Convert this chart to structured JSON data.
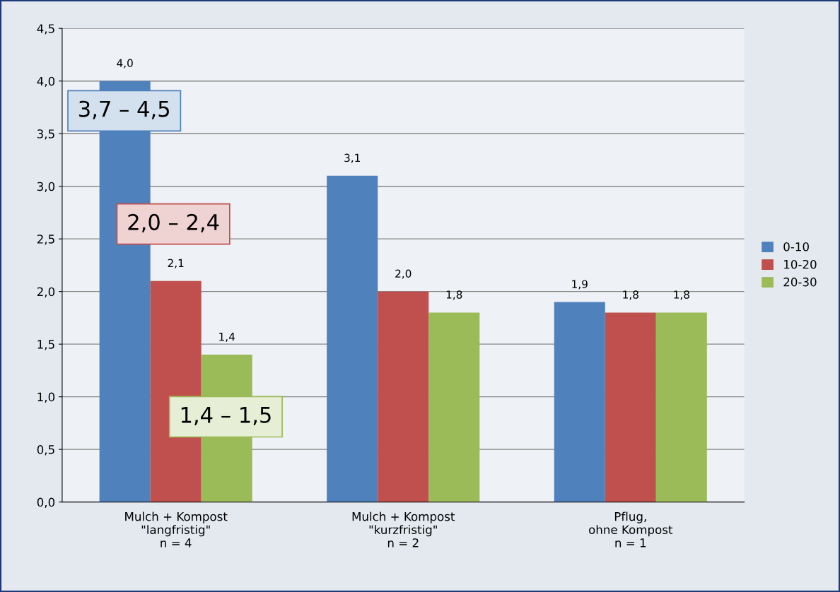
{
  "chart_data": {
    "type": "bar",
    "categories": [
      "Mulch + Kompost\n\"langfristig\"\nn = 4",
      "Mulch + Kompost\n\"kurzfristig\"\nn = 2",
      "Pflug,\nohne Kompost\nn = 1"
    ],
    "series": [
      {
        "name": "0-10",
        "color": "#4f81bd",
        "values": [
          4.0,
          3.1,
          1.9
        ],
        "value_labels": [
          "4,0",
          "3,1",
          "1,9"
        ]
      },
      {
        "name": "10-20",
        "color": "#c0504d",
        "values": [
          2.1,
          2.0,
          1.8
        ],
        "value_labels": [
          "2,1",
          "2,0",
          "1,8"
        ]
      },
      {
        "name": "20-30",
        "color": "#9bbb59",
        "values": [
          1.4,
          1.8,
          1.8
        ],
        "value_labels": [
          "1,4",
          "1,8",
          "1,8"
        ]
      }
    ],
    "ylim": [
      0,
      4.5
    ],
    "yticks": [
      {
        "value": 0,
        "label": "0,0"
      },
      {
        "value": 0.5,
        "label": "0,5"
      },
      {
        "value": 1.0,
        "label": "1,0"
      },
      {
        "value": 1.5,
        "label": "1,5"
      },
      {
        "value": 2.0,
        "label": "2,0"
      },
      {
        "value": 2.5,
        "label": "2,5"
      },
      {
        "value": 3.0,
        "label": "3,0"
      },
      {
        "value": 3.5,
        "label": "3,5"
      },
      {
        "value": 4.0,
        "label": "4,0"
      },
      {
        "value": 4.5,
        "label": "4,5"
      }
    ],
    "grid": "y",
    "legend": "right",
    "annotations": [
      "3,7 – 4,5",
      "2,0 – 2,4",
      "1,4 – 1,5"
    ]
  }
}
